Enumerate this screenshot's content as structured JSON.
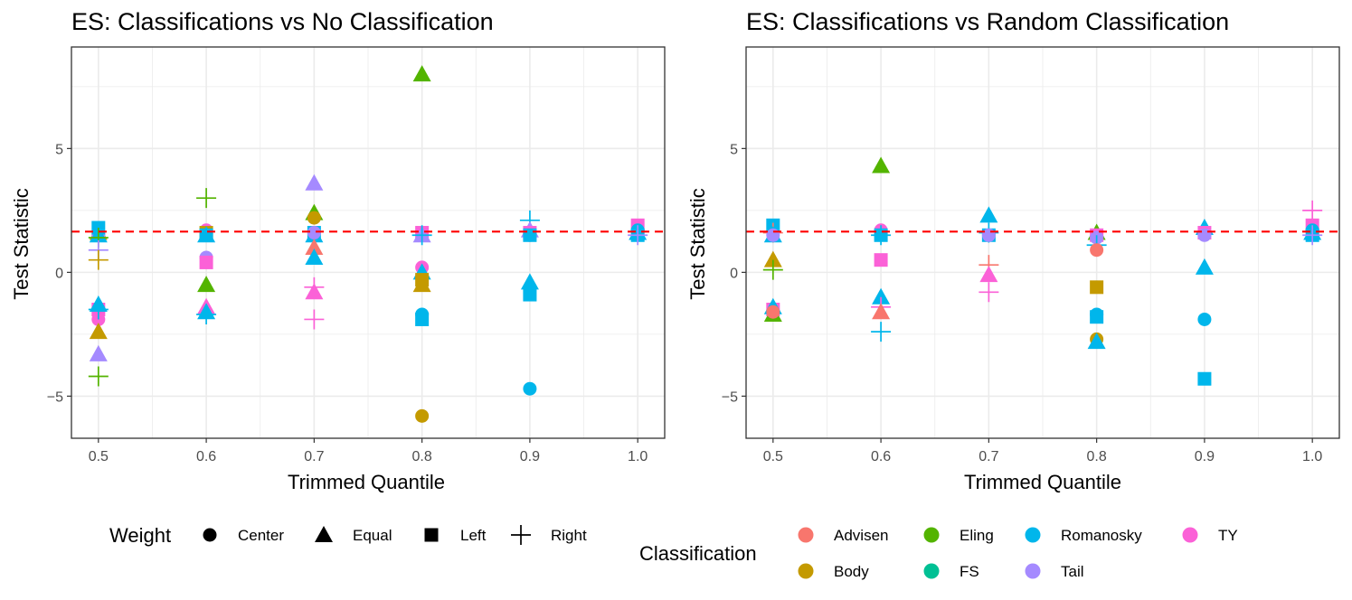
{
  "chart_data": [
    {
      "type": "scatter",
      "title": "ES: Classifications vs No Classification",
      "xlabel": "Trimmed Quantile",
      "ylabel": "Test Statistic",
      "x_ticks": [
        "0.5",
        "0.6",
        "0.7",
        "0.8",
        "0.9",
        "1.0"
      ],
      "y_ticks": [
        "−5",
        "0",
        "5"
      ],
      "xlim": [
        0.475,
        1.025
      ],
      "ylim": [
        -6.7,
        9.1
      ],
      "reference_line": 1.645,
      "points": [
        {
          "x": 0.5,
          "y": 1.5,
          "c": "Advisen",
          "s": "Center"
        },
        {
          "x": 0.5,
          "y": 1.6,
          "c": "Body",
          "s": "Equal"
        },
        {
          "x": 0.5,
          "y": 1.5,
          "c": "Tail",
          "s": "Center"
        },
        {
          "x": 0.5,
          "y": 1.5,
          "c": "Romanosky",
          "s": "Equal"
        },
        {
          "x": 0.5,
          "y": 1.8,
          "c": "Romanosky",
          "s": "Left"
        },
        {
          "x": 0.5,
          "y": 1.4,
          "c": "Eling",
          "s": "Right"
        },
        {
          "x": 0.5,
          "y": 0.9,
          "c": "Tail",
          "s": "Right"
        },
        {
          "x": 0.5,
          "y": 0.5,
          "c": "Body",
          "s": "Right"
        },
        {
          "x": 0.5,
          "y": -1.5,
          "c": "TY",
          "s": "Left"
        },
        {
          "x": 0.5,
          "y": -1.9,
          "c": "TY",
          "s": "Center"
        },
        {
          "x": 0.5,
          "y": -1.3,
          "c": "Romanosky",
          "s": "Equal"
        },
        {
          "x": 0.5,
          "y": -1.5,
          "c": "Romanosky",
          "s": "Right"
        },
        {
          "x": 0.5,
          "y": -2.4,
          "c": "Body",
          "s": "Equal"
        },
        {
          "x": 0.5,
          "y": -3.3,
          "c": "Tail",
          "s": "Equal"
        },
        {
          "x": 0.5,
          "y": -4.2,
          "c": "Eling",
          "s": "Right"
        },
        {
          "x": 0.6,
          "y": 3.0,
          "c": "Eling",
          "s": "Right"
        },
        {
          "x": 0.6,
          "y": 1.7,
          "c": "TY",
          "s": "Center"
        },
        {
          "x": 0.6,
          "y": 1.6,
          "c": "Body",
          "s": "Left"
        },
        {
          "x": 0.6,
          "y": 1.5,
          "c": "Romanosky",
          "s": "Equal"
        },
        {
          "x": 0.6,
          "y": 1.5,
          "c": "Romanosky",
          "s": "Left"
        },
        {
          "x": 0.6,
          "y": 0.6,
          "c": "Tail",
          "s": "Center"
        },
        {
          "x": 0.6,
          "y": 0.4,
          "c": "TY",
          "s": "Left"
        },
        {
          "x": 0.6,
          "y": -0.5,
          "c": "Eling",
          "s": "Equal"
        },
        {
          "x": 0.6,
          "y": -1.4,
          "c": "TY",
          "s": "Equal"
        },
        {
          "x": 0.6,
          "y": -1.6,
          "c": "Romanosky",
          "s": "Equal"
        },
        {
          "x": 0.6,
          "y": -1.7,
          "c": "Romanosky",
          "s": "Right"
        },
        {
          "x": 0.7,
          "y": 3.6,
          "c": "Tail",
          "s": "Equal"
        },
        {
          "x": 0.7,
          "y": 2.4,
          "c": "Eling",
          "s": "Equal"
        },
        {
          "x": 0.7,
          "y": 2.2,
          "c": "Body",
          "s": "Center"
        },
        {
          "x": 0.7,
          "y": 1.6,
          "c": "Romanosky",
          "s": "Left"
        },
        {
          "x": 0.7,
          "y": 1.5,
          "c": "Romanosky",
          "s": "Equal"
        },
        {
          "x": 0.7,
          "y": 1.6,
          "c": "Tail",
          "s": "Center"
        },
        {
          "x": 0.7,
          "y": 1.0,
          "c": "Advisen",
          "s": "Equal"
        },
        {
          "x": 0.7,
          "y": 0.6,
          "c": "Romanosky",
          "s": "Equal"
        },
        {
          "x": 0.7,
          "y": -0.6,
          "c": "TY",
          "s": "Right"
        },
        {
          "x": 0.7,
          "y": -0.8,
          "c": "TY",
          "s": "Equal"
        },
        {
          "x": 0.7,
          "y": -1.9,
          "c": "TY",
          "s": "Right"
        },
        {
          "x": 0.8,
          "y": 8.0,
          "c": "Eling",
          "s": "Equal"
        },
        {
          "x": 0.8,
          "y": 1.6,
          "c": "TY",
          "s": "Left"
        },
        {
          "x": 0.8,
          "y": 1.5,
          "c": "Tail",
          "s": "Equal"
        },
        {
          "x": 0.8,
          "y": 1.5,
          "c": "Romanosky",
          "s": "Right"
        },
        {
          "x": 0.8,
          "y": 0.2,
          "c": "TY",
          "s": "Center"
        },
        {
          "x": 0.8,
          "y": 0.0,
          "c": "Romanosky",
          "s": "Equal"
        },
        {
          "x": 0.8,
          "y": -0.3,
          "c": "Body",
          "s": "Left"
        },
        {
          "x": 0.8,
          "y": -0.5,
          "c": "Body",
          "s": "Equal"
        },
        {
          "x": 0.8,
          "y": -1.7,
          "c": "Romanosky",
          "s": "Center"
        },
        {
          "x": 0.8,
          "y": -1.9,
          "c": "Romanosky",
          "s": "Left"
        },
        {
          "x": 0.8,
          "y": -5.8,
          "c": "Body",
          "s": "Center"
        },
        {
          "x": 0.9,
          "y": 2.1,
          "c": "Romanosky",
          "s": "Right"
        },
        {
          "x": 0.9,
          "y": 1.7,
          "c": "Tail",
          "s": "Equal"
        },
        {
          "x": 0.9,
          "y": 1.6,
          "c": "TY",
          "s": "Left"
        },
        {
          "x": 0.9,
          "y": 1.5,
          "c": "Tail",
          "s": "Center"
        },
        {
          "x": 0.9,
          "y": 1.5,
          "c": "Romanosky",
          "s": "Left"
        },
        {
          "x": 0.9,
          "y": -0.4,
          "c": "Romanosky",
          "s": "Equal"
        },
        {
          "x": 0.9,
          "y": -0.9,
          "c": "Romanosky",
          "s": "Left"
        },
        {
          "x": 0.9,
          "y": -4.7,
          "c": "Romanosky",
          "s": "Center"
        },
        {
          "x": 1.0,
          "y": 1.9,
          "c": "TY",
          "s": "Left"
        },
        {
          "x": 1.0,
          "y": 1.7,
          "c": "Romanosky",
          "s": "Center"
        },
        {
          "x": 1.0,
          "y": 1.6,
          "c": "Romanosky",
          "s": "Equal"
        },
        {
          "x": 1.0,
          "y": 1.5,
          "c": "Romanosky",
          "s": "Left"
        },
        {
          "x": 1.0,
          "y": 1.5,
          "c": "Tail",
          "s": "Right"
        }
      ]
    },
    {
      "type": "scatter",
      "title": "ES: Classifications vs Random Classification",
      "xlabel": "Trimmed Quantile",
      "ylabel": "Test Statistic",
      "x_ticks": [
        "0.5",
        "0.6",
        "0.7",
        "0.8",
        "0.9",
        "1.0"
      ],
      "y_ticks": [
        "−5",
        "0",
        "5"
      ],
      "xlim": [
        0.475,
        1.025
      ],
      "ylim": [
        -6.7,
        9.1
      ],
      "reference_line": 1.645,
      "points": [
        {
          "x": 0.5,
          "y": 1.9,
          "c": "Romanosky",
          "s": "Left"
        },
        {
          "x": 0.5,
          "y": 1.6,
          "c": "Advisen",
          "s": "Right"
        },
        {
          "x": 0.5,
          "y": 1.5,
          "c": "Romanosky",
          "s": "Equal"
        },
        {
          "x": 0.5,
          "y": 1.5,
          "c": "Tail",
          "s": "Center"
        },
        {
          "x": 0.5,
          "y": 0.5,
          "c": "Body",
          "s": "Equal"
        },
        {
          "x": 0.5,
          "y": 0.1,
          "c": "Eling",
          "s": "Right"
        },
        {
          "x": 0.5,
          "y": -1.5,
          "c": "TY",
          "s": "Left"
        },
        {
          "x": 0.5,
          "y": -1.4,
          "c": "Romanosky",
          "s": "Equal"
        },
        {
          "x": 0.5,
          "y": -1.7,
          "c": "Eling",
          "s": "Equal"
        },
        {
          "x": 0.5,
          "y": -1.6,
          "c": "Advisen",
          "s": "Center"
        },
        {
          "x": 0.6,
          "y": 4.3,
          "c": "Eling",
          "s": "Equal"
        },
        {
          "x": 0.6,
          "y": 1.7,
          "c": "TY",
          "s": "Center"
        },
        {
          "x": 0.6,
          "y": 1.5,
          "c": "Romanosky",
          "s": "Left"
        },
        {
          "x": 0.6,
          "y": 1.5,
          "c": "Romanosky",
          "s": "Right"
        },
        {
          "x": 0.6,
          "y": 0.5,
          "c": "TY",
          "s": "Left"
        },
        {
          "x": 0.6,
          "y": -1.0,
          "c": "Romanosky",
          "s": "Equal"
        },
        {
          "x": 0.6,
          "y": -1.4,
          "c": "TY",
          "s": "Right"
        },
        {
          "x": 0.6,
          "y": -1.6,
          "c": "Advisen",
          "s": "Equal"
        },
        {
          "x": 0.6,
          "y": -2.4,
          "c": "Romanosky",
          "s": "Right"
        },
        {
          "x": 0.7,
          "y": 2.3,
          "c": "Romanosky",
          "s": "Equal"
        },
        {
          "x": 0.7,
          "y": 1.6,
          "c": "Romanosky",
          "s": "Right"
        },
        {
          "x": 0.7,
          "y": 1.5,
          "c": "Romanosky",
          "s": "Left"
        },
        {
          "x": 0.7,
          "y": 1.5,
          "c": "Tail",
          "s": "Center"
        },
        {
          "x": 0.7,
          "y": 0.3,
          "c": "Advisen",
          "s": "Right"
        },
        {
          "x": 0.7,
          "y": -0.1,
          "c": "TY",
          "s": "Equal"
        },
        {
          "x": 0.7,
          "y": -0.8,
          "c": "TY",
          "s": "Right"
        },
        {
          "x": 0.8,
          "y": 1.6,
          "c": "Eling",
          "s": "Equal"
        },
        {
          "x": 0.8,
          "y": 1.5,
          "c": "TY",
          "s": "Left"
        },
        {
          "x": 0.8,
          "y": 1.4,
          "c": "Tail",
          "s": "Center"
        },
        {
          "x": 0.8,
          "y": 1.1,
          "c": "Romanosky",
          "s": "Right"
        },
        {
          "x": 0.8,
          "y": 0.9,
          "c": "Advisen",
          "s": "Center"
        },
        {
          "x": 0.8,
          "y": -0.6,
          "c": "Body",
          "s": "Left"
        },
        {
          "x": 0.8,
          "y": -1.7,
          "c": "Romanosky",
          "s": "Center"
        },
        {
          "x": 0.8,
          "y": -1.8,
          "c": "Romanosky",
          "s": "Left"
        },
        {
          "x": 0.8,
          "y": -2.7,
          "c": "Body",
          "s": "Center"
        },
        {
          "x": 0.8,
          "y": -2.8,
          "c": "Romanosky",
          "s": "Equal"
        },
        {
          "x": 0.9,
          "y": 1.8,
          "c": "Romanosky",
          "s": "Equal"
        },
        {
          "x": 0.9,
          "y": 1.6,
          "c": "TY",
          "s": "Left"
        },
        {
          "x": 0.9,
          "y": 1.5,
          "c": "Tail",
          "s": "Center"
        },
        {
          "x": 0.9,
          "y": 0.2,
          "c": "Romanosky",
          "s": "Equal"
        },
        {
          "x": 0.9,
          "y": -1.9,
          "c": "Romanosky",
          "s": "Center"
        },
        {
          "x": 0.9,
          "y": -4.3,
          "c": "Romanosky",
          "s": "Left"
        },
        {
          "x": 1.0,
          "y": 2.5,
          "c": "TY",
          "s": "Right"
        },
        {
          "x": 1.0,
          "y": 1.9,
          "c": "TY",
          "s": "Left"
        },
        {
          "x": 1.0,
          "y": 1.7,
          "c": "Romanosky",
          "s": "Center"
        },
        {
          "x": 1.0,
          "y": 1.6,
          "c": "Romanosky",
          "s": "Equal"
        },
        {
          "x": 1.0,
          "y": 1.5,
          "c": "Romanosky",
          "s": "Left"
        },
        {
          "x": 1.0,
          "y": 1.5,
          "c": "Tail",
          "s": "Right"
        }
      ]
    }
  ],
  "legend_weight": {
    "title": "Weight",
    "items": [
      {
        "label": "Center",
        "shape": "Center"
      },
      {
        "label": "Equal",
        "shape": "Equal"
      },
      {
        "label": "Left",
        "shape": "Left"
      },
      {
        "label": "Right",
        "shape": "Right"
      }
    ]
  },
  "legend_classification": {
    "title": "Classification",
    "items": [
      {
        "label": "Advisen",
        "color": "#F8766D"
      },
      {
        "label": "Body",
        "color": "#C49A00"
      },
      {
        "label": "Eling",
        "color": "#53B400"
      },
      {
        "label": "FS",
        "color": "#00C094"
      },
      {
        "label": "Romanosky",
        "color": "#00B6EB"
      },
      {
        "label": "Tail",
        "color": "#A58AFF"
      },
      {
        "label": "TY",
        "color": "#FB61D7"
      }
    ]
  },
  "colors": {
    "Advisen": "#F8766D",
    "Body": "#C49A00",
    "Eling": "#53B400",
    "FS": "#00C094",
    "Romanosky": "#00B6EB",
    "Tail": "#A58AFF",
    "TY": "#FB61D7",
    "reference_line": "#FF0000",
    "grid": "#EBEBEB",
    "panel_border": "#333333"
  }
}
